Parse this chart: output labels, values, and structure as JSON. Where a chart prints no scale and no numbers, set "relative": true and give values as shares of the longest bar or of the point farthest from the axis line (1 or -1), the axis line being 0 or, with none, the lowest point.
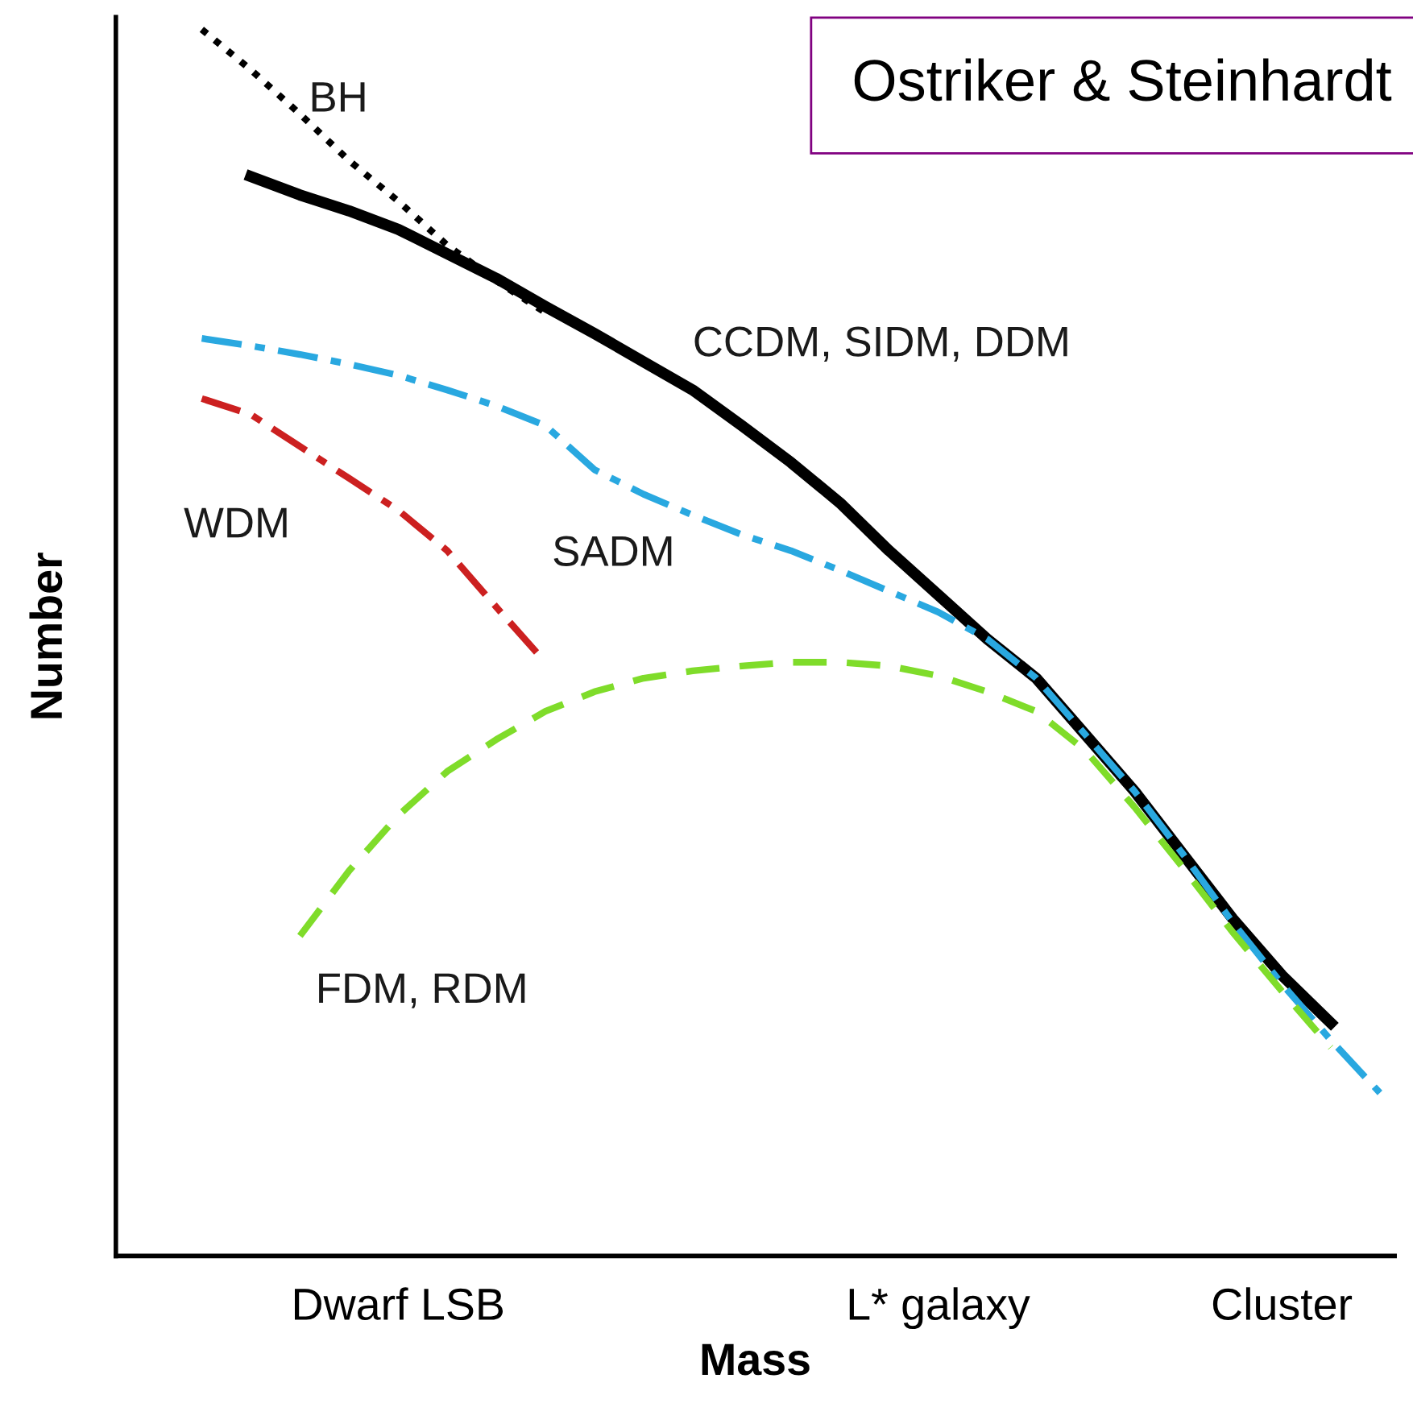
{
  "chart_data": {
    "type": "line",
    "title": "Ostriker & Steinhardt",
    "xlabel": "Mass",
    "ylabel": "Number",
    "relative": true,
    "legend": false,
    "grid": false,
    "categories": [
      null,
      null,
      null,
      null,
      null,
      "Dwarf LSB",
      null,
      null,
      null,
      null,
      null,
      null,
      null,
      null,
      null,
      null,
      "L* galaxy",
      null,
      null,
      null,
      null,
      null,
      null,
      "Cluster",
      null,
      null
    ],
    "series": [
      {
        "name": "BH",
        "color": "#000000",
        "line_style": "dotted",
        "values": [
          null,
          1.0,
          0.967,
          0.931,
          0.893,
          0.86,
          0.824,
          0.795,
          0.769,
          null,
          null,
          null,
          null,
          null,
          null,
          null,
          null,
          null,
          null,
          null,
          null,
          null,
          null,
          null,
          null,
          null
        ]
      },
      {
        "name": "CCDM, SIDM, DDM",
        "color": "#000000",
        "line_style": "solid",
        "values": [
          null,
          null,
          0.88,
          0.865,
          0.852,
          0.837,
          0.817,
          0.797,
          0.774,
          0.752,
          0.729,
          0.706,
          0.677,
          0.647,
          0.614,
          0.575,
          0.539,
          0.503,
          0.471,
          0.425,
          0.379,
          0.327,
          0.275,
          0.229,
          0.19,
          null
        ]
      },
      {
        "name": "SADM",
        "color": "#29a8e0",
        "line_style": "dashdot",
        "values": [
          null,
          0.748,
          0.742,
          0.735,
          0.727,
          0.718,
          0.706,
          0.693,
          0.677,
          0.641,
          0.621,
          0.604,
          0.588,
          0.575,
          0.559,
          0.542,
          0.525,
          0.503,
          0.471,
          0.425,
          0.379,
          0.327,
          0.272,
          0.222,
          0.176,
          0.133
        ]
      },
      {
        "name": "WDM",
        "color": "#cc2020",
        "line_style": "dashdot",
        "values": [
          null,
          0.699,
          0.686,
          0.66,
          0.634,
          0.608,
          0.575,
          0.529,
          0.484,
          null,
          null,
          null,
          null,
          null,
          null,
          null,
          null,
          null,
          null,
          null,
          null,
          null,
          null,
          null,
          null,
          null
        ]
      },
      {
        "name": "FDM, RDM",
        "color": "#7fdc2a",
        "line_style": "dashed",
        "values": [
          null,
          null,
          null,
          0.261,
          0.314,
          0.359,
          0.395,
          0.421,
          0.444,
          0.46,
          0.471,
          0.477,
          0.481,
          0.484,
          0.484,
          0.481,
          0.473,
          0.46,
          0.444,
          0.412,
          0.366,
          0.316,
          0.264,
          0.216,
          0.17,
          null
        ]
      }
    ]
  }
}
